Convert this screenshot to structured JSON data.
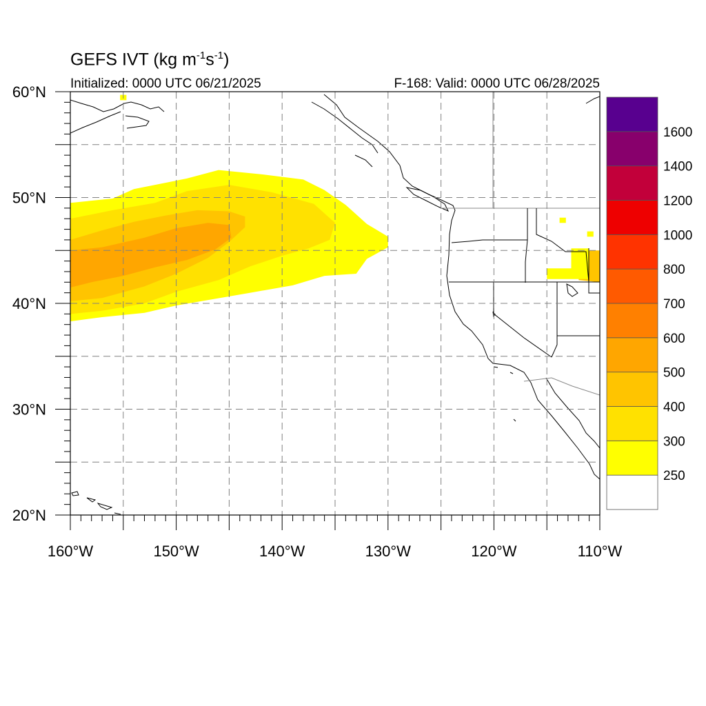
{
  "header": {
    "title_main": "GEFS IVT (kg m",
    "title_exp1": "-1",
    "title_mid": "s",
    "title_exp2": "-1",
    "title_end": ")",
    "initialized": "Initialized: 0000 UTC 06/21/2025",
    "valid": "F-168: Valid: 0000 UTC 06/28/2025"
  },
  "map": {
    "lon_range": [
      -160,
      -110
    ],
    "lat_range": [
      20,
      60
    ],
    "lon_ticks": [
      "160°W",
      "150°W",
      "140°W",
      "130°W",
      "120°W",
      "110°W"
    ],
    "lat_ticks": [
      "20°N",
      "30°N",
      "40°N",
      "50°N",
      "60°N"
    ],
    "grid": true,
    "projection": "cylindrical equidistant"
  },
  "colorbar": {
    "labels": [
      "250",
      "300",
      "400",
      "500",
      "600",
      "700",
      "800",
      "1000",
      "1200",
      "1400",
      "1600"
    ],
    "colors": [
      "#ffffff",
      "#ffff00",
      "#ffe100",
      "#ffc400",
      "#ffa600",
      "#ff8000",
      "#ff5a00",
      "#ff3300",
      "#ee0000",
      "#c2003a",
      "#88006c",
      "#58008f"
    ]
  },
  "chart_data": {
    "type": "heatmap",
    "variable": "IVT",
    "units": "kg m-1 s-1",
    "levels": [
      250,
      300,
      400,
      500,
      600,
      700,
      800,
      1000,
      1200,
      1400,
      1600
    ],
    "regions": [
      {
        "level": 250,
        "polygon": [
          [
            -160,
            49.5
          ],
          [
            -156,
            49.9
          ],
          [
            -154,
            50.8
          ],
          [
            -149,
            51.8
          ],
          [
            -146,
            52.6
          ],
          [
            -142,
            52.2
          ],
          [
            -138,
            51.7
          ],
          [
            -136,
            50.7
          ],
          [
            -134,
            49.3
          ],
          [
            -132,
            47.5
          ],
          [
            -130,
            46.3
          ],
          [
            -130,
            45.3
          ],
          [
            -132,
            44.2
          ],
          [
            -133,
            42.8
          ],
          [
            -136,
            42.6
          ],
          [
            -139,
            41.7
          ],
          [
            -143,
            41
          ],
          [
            -150,
            39.8
          ],
          [
            -153,
            39.1
          ],
          [
            -157,
            38.7
          ],
          [
            -160,
            38.3
          ]
        ]
      },
      {
        "level": 300,
        "polygon": [
          [
            -160,
            48
          ],
          [
            -156,
            48.8
          ],
          [
            -152,
            49.5
          ],
          [
            -149,
            50.6
          ],
          [
            -145,
            51.2
          ],
          [
            -141,
            50.5
          ],
          [
            -137,
            49.4
          ],
          [
            -135,
            47.6
          ],
          [
            -135.5,
            46
          ],
          [
            -137.5,
            45.2
          ],
          [
            -140,
            44.5
          ],
          [
            -143,
            43.5
          ],
          [
            -146,
            42.2
          ],
          [
            -150,
            41.1
          ],
          [
            -153,
            40
          ],
          [
            -157,
            39.3
          ],
          [
            -160,
            39
          ]
        ]
      },
      {
        "level": 400,
        "polygon": [
          [
            -160,
            46
          ],
          [
            -157,
            46.9
          ],
          [
            -154,
            47.7
          ],
          [
            -151,
            48.3
          ],
          [
            -148,
            48.8
          ],
          [
            -145,
            48.7
          ],
          [
            -143.5,
            48.2
          ],
          [
            -143.5,
            47.2
          ],
          [
            -145,
            45.8
          ],
          [
            -147,
            44.3
          ],
          [
            -150,
            42.8
          ],
          [
            -153,
            41.6
          ],
          [
            -157,
            40.5
          ],
          [
            -160,
            40.2
          ]
        ]
      },
      {
        "level": 400,
        "polygon": [
          [
            -112,
            45
          ],
          [
            -110,
            45
          ],
          [
            -110,
            42
          ],
          [
            -112,
            42.2
          ],
          [
            -112,
            43.5
          ]
        ]
      },
      {
        "level": 500,
        "polygon": [
          [
            -160,
            45
          ],
          [
            -157,
            45.3
          ],
          [
            -153,
            46.2
          ],
          [
            -150,
            47.1
          ],
          [
            -147,
            47.6
          ],
          [
            -145,
            47.4
          ],
          [
            -144.8,
            46.2
          ],
          [
            -146.3,
            45.1
          ],
          [
            -149,
            44.1
          ],
          [
            -152,
            43.4
          ],
          [
            -155,
            42.6
          ],
          [
            -158,
            42
          ],
          [
            -160,
            41.5
          ]
        ]
      },
      {
        "level": 250,
        "polygon": [
          [
            -115,
            43.3
          ],
          [
            -111,
            43.3
          ],
          [
            -111,
            42.3
          ],
          [
            -115,
            42.3
          ]
        ]
      },
      {
        "level": 250,
        "polygon": [
          [
            -112.7,
            45.2
          ],
          [
            -111,
            45.2
          ],
          [
            -111,
            43.2
          ],
          [
            -112.7,
            43.2
          ]
        ]
      },
      {
        "level": 250,
        "polygon": [
          [
            -113.8,
            48.1
          ],
          [
            -113.2,
            48.1
          ],
          [
            -113.2,
            47.6
          ],
          [
            -113.8,
            47.6
          ]
        ]
      },
      {
        "level": 250,
        "polygon": [
          [
            -111.2,
            46.8
          ],
          [
            -110.6,
            46.8
          ],
          [
            -110.6,
            46.3
          ],
          [
            -111.2,
            46.3
          ]
        ]
      },
      {
        "level": 250,
        "polygon": [
          [
            -155.3,
            59.7
          ],
          [
            -154.7,
            59.7
          ],
          [
            -154.7,
            59.2
          ],
          [
            -155.3,
            59.2
          ]
        ]
      }
    ]
  }
}
